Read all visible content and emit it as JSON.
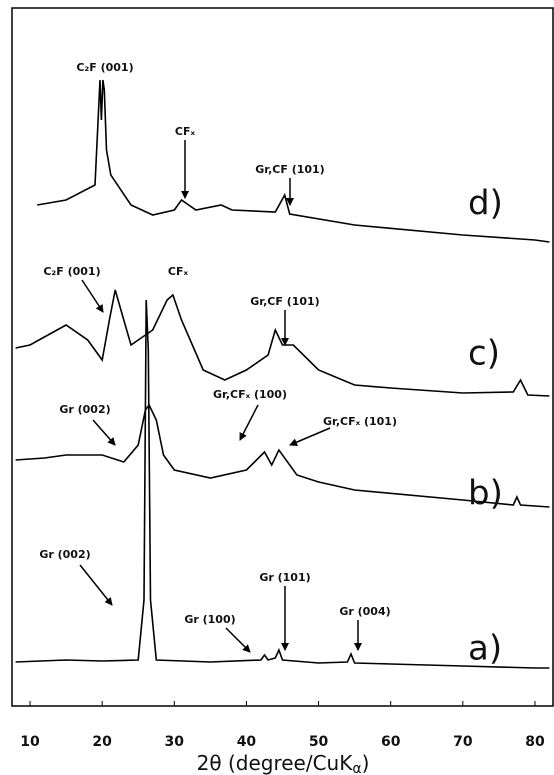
{
  "chart_data": {
    "type": "line",
    "xlabel": [
      "2θ (degree/CuK",
      "α",
      ")"
    ],
    "xlim": [
      7.5,
      82.5
    ],
    "xticks": [
      10,
      20,
      30,
      40,
      50,
      60,
      70,
      80
    ],
    "ylim": [
      0,
      698
    ],
    "series": [
      {
        "name": "a)",
        "color": "#000000",
        "x": [
          8,
          15,
          20,
          25,
          25.8,
          26.1,
          26.4,
          26.7,
          27.5,
          35,
          42,
          42.5,
          43,
          44,
          44.5,
          45,
          50,
          54,
          54.5,
          55,
          60,
          70,
          80,
          82
        ],
        "values": [
          44,
          46,
          45,
          46,
          106,
          406,
          356,
          106,
          46,
          44,
          46,
          51,
          46,
          48,
          56,
          46,
          43,
          44,
          52,
          43,
          42,
          40,
          38,
          38
        ]
      },
      {
        "name": "b)",
        "color": "#000000",
        "x": [
          8,
          12,
          15,
          20,
          23,
          25,
          26,
          26.5,
          27.5,
          28.5,
          30,
          35,
          40,
          42.5,
          43.5,
          44.5,
          47,
          50,
          55,
          70,
          77,
          77.5,
          78,
          82
        ],
        "values": [
          246,
          248,
          251,
          251,
          244,
          261,
          296,
          301,
          286,
          251,
          236,
          228,
          236,
          254,
          241,
          256,
          231,
          224,
          216,
          206,
          201,
          209,
          201,
          199
        ]
      },
      {
        "name": "c)",
        "color": "#000000",
        "x": [
          8,
          10,
          15,
          18,
          20,
          21,
          21.8,
          23,
          24,
          27,
          29,
          29.8,
          31,
          34,
          37,
          40,
          43,
          44,
          45,
          46.5,
          50,
          55,
          60,
          70,
          77,
          78,
          79,
          82
        ],
        "values": [
          358,
          361,
          381,
          366,
          346,
          386,
          416,
          386,
          361,
          376,
          406,
          411,
          386,
          336,
          326,
          336,
          351,
          376,
          361,
          361,
          336,
          321,
          318,
          313,
          314,
          326,
          311,
          310
        ]
      },
      {
        "name": "d)",
        "color": "#000000",
        "x": [
          11,
          15,
          19,
          19.7,
          19.9,
          20.1,
          20.3,
          20.6,
          21.2,
          24,
          27,
          30,
          31,
          33,
          36.5,
          38,
          44,
          45.3,
          46,
          55,
          70,
          80,
          82
        ],
        "values": [
          501,
          506,
          521,
          626,
          586,
          626,
          616,
          556,
          531,
          501,
          491,
          496,
          506,
          496,
          501,
          496,
          494,
          511,
          492,
          481,
          471,
          466,
          464
        ]
      }
    ],
    "annotations": [
      "C₂F (001)",
      "CFₓ",
      "Gr,CF (101)",
      "C₂F (001)",
      "CFₓ",
      "Gr,CF (101)",
      "Gr (002)",
      "Gr,CFₓ (100)",
      "Gr,CFₓ (101)",
      "Gr (002)",
      "Gr (100)",
      "Gr (101)",
      "Gr (004)"
    ]
  }
}
